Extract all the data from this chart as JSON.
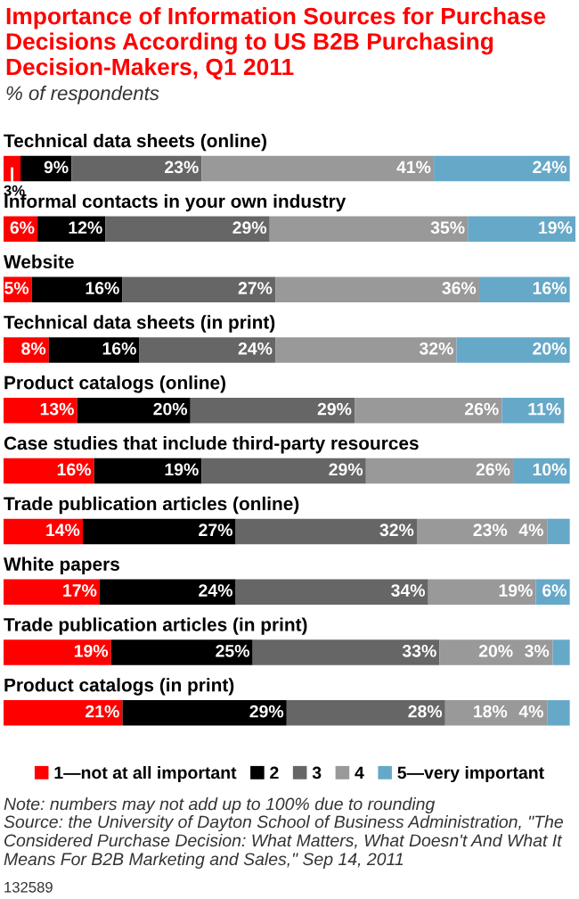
{
  "chart_data": {
    "type": "bar",
    "orientation": "horizontal",
    "stacked": true,
    "title": "Importance of Information Sources for Purchase Decisions According to US B2B Purchasing Decision-Makers, Q1 2011",
    "subtitle": "% of respondents",
    "categories": [
      "Technical data sheets (online)",
      "Informal contacts in your own industry",
      "Website",
      "Technical data sheets (in print)",
      "Product catalogs (online)",
      "Case studies that include third-party resources",
      "Trade publication articles (online)",
      "White papers",
      "Trade publication articles (in print)",
      "Product catalogs (in print)"
    ],
    "series": [
      {
        "name": "1—not at all important",
        "color": "#ff0000",
        "values": [
          3,
          6,
          5,
          8,
          13,
          16,
          14,
          17,
          19,
          21
        ],
        "value_labels": [
          "3%",
          "6%",
          "5%",
          "8%",
          "13%",
          "16%",
          "14%",
          "17%",
          "19%",
          "21%"
        ]
      },
      {
        "name": "2",
        "color": "#000000",
        "values": [
          9,
          12,
          16,
          16,
          20,
          19,
          27,
          24,
          25,
          29
        ],
        "value_labels": [
          "9%",
          "12%",
          "16%",
          "16%",
          "20%",
          "19%",
          "27%",
          "24%",
          "25%",
          "29%"
        ]
      },
      {
        "name": "3",
        "color": "#666666",
        "values": [
          23,
          29,
          27,
          24,
          29,
          29,
          32,
          34,
          33,
          28
        ],
        "value_labels": [
          "23%",
          "29%",
          "27%",
          "24%",
          "29%",
          "29%",
          "32%",
          "34%",
          "33%",
          "28%"
        ]
      },
      {
        "name": "4",
        "color": "#999999",
        "values": [
          41,
          35,
          36,
          32,
          26,
          26,
          23,
          19,
          20,
          18
        ],
        "value_labels": [
          "41%",
          "35%",
          "36%",
          "32%",
          "26%",
          "26%",
          "23%",
          "19%",
          "20%",
          "18%"
        ]
      },
      {
        "name": "5—very important",
        "color": "#66a8c8",
        "values": [
          24,
          19,
          16,
          20,
          11,
          10,
          4,
          6,
          3,
          4
        ],
        "value_labels": [
          "24%",
          "19%",
          "16%",
          "20%",
          "11%",
          "10%",
          "4%",
          "6%",
          "3%",
          "4%"
        ]
      }
    ],
    "legend": "bottom",
    "annotations": [
      "Note: numbers may not add up to 100% due to rounding",
      "Source: the University of Dayton School of Business Administration, \"The Considered Purchase Decision: What Matters, What Doesn't And What It Means For B2B Marketing and Sales,\" Sep 14, 2011",
      "132589"
    ]
  }
}
